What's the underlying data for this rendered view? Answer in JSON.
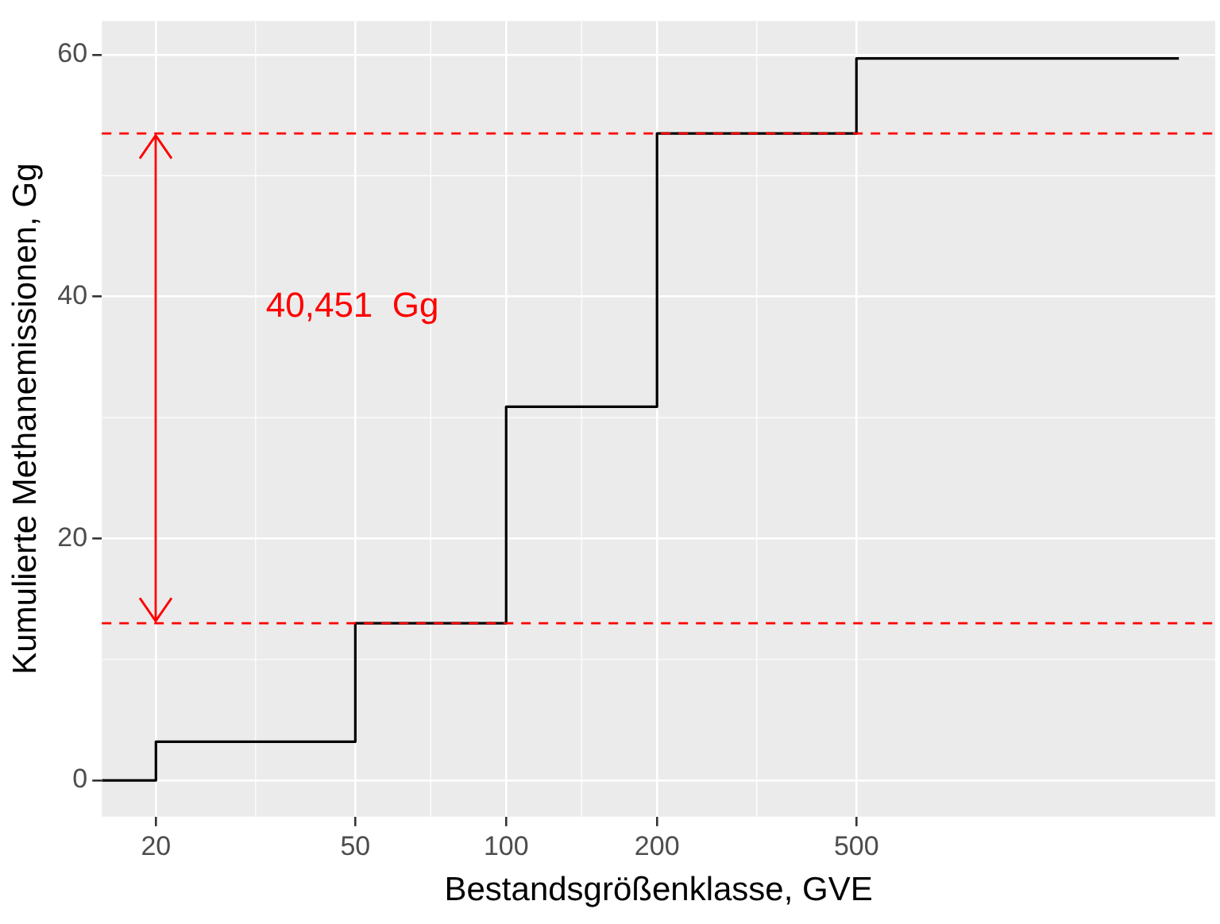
{
  "chart_data": {
    "type": "step",
    "xlabel": "Bestandsgrößenklasse, GVE",
    "ylabel": "Kumulierte Methanemissionen, Gg",
    "log": "x",
    "x": [
      15.6,
      20,
      50,
      100,
      200,
      500,
      2200
    ],
    "series": [
      {
        "color": "#000000",
        "values": [
          0,
          3.2,
          13.0,
          30.9,
          53.5,
          59.7,
          59.7
        ]
      }
    ],
    "xlim": [
      15.6,
      2600
    ],
    "xticks": [
      20,
      50,
      100,
      200,
      500
    ],
    "ylim": [
      -3,
      62.8
    ],
    "yticks": [
      0,
      20,
      40,
      60
    ],
    "grid": true,
    "legend": false,
    "marker": "none",
    "line_style": "solid",
    "ref_lines": [
      {
        "axis": "y",
        "value": 13.0,
        "color": "#ff0000",
        "line_style": "dashed"
      },
      {
        "axis": "y",
        "value": 53.5,
        "color": "#ff0000",
        "line_style": "dashed"
      }
    ],
    "annotations": [
      "40,451  Gg"
    ]
  }
}
